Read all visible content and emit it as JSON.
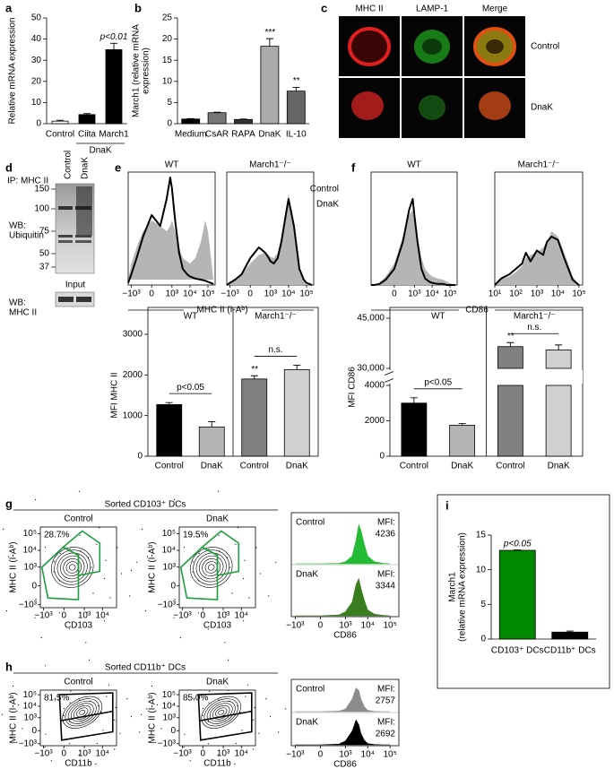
{
  "panel_labels": [
    "a",
    "b",
    "c",
    "d",
    "e",
    "f",
    "g",
    "h",
    "i"
  ],
  "microscopy": {
    "columns": [
      "MHC II",
      "LAMP-1",
      "Merge"
    ],
    "rows": [
      "Control",
      "DnaK"
    ]
  },
  "western_blot": {
    "ip_label": "IP: MHC II",
    "lanes": [
      "Control",
      "DnaK"
    ],
    "wb_label": [
      "WB:",
      "Ubiquitin"
    ],
    "markers": [
      150,
      100,
      75,
      50,
      37
    ],
    "input_label": "Input",
    "input_wb_label": [
      "WB:",
      "MHC II"
    ]
  },
  "chart_data": [
    {
      "type": "bar",
      "categories": [
        "Control",
        "Ciita",
        "March1"
      ],
      "values": [
        1.2,
        4.3,
        35
      ],
      "errors": [
        0.4,
        0.5,
        3
      ],
      "colors": [
        "#ffffff",
        "#000000",
        "#000000"
      ],
      "ylim": [
        0,
        50
      ],
      "yticks": [
        0,
        10,
        20,
        30,
        40,
        50
      ],
      "ylabel": [
        "Relative mRNA expression"
      ],
      "groups": [
        {
          "label": "DnaK",
          "from": 1,
          "to": 2
        }
      ],
      "group_position": "bottom",
      "annotations": [
        {
          "text": "p<0.01",
          "index": 2
        }
      ]
    },
    {
      "type": "bar",
      "categories": [
        "Medium",
        "CsAR",
        "RAPA",
        "DnaK",
        "IL-10"
      ],
      "values": [
        1.1,
        2.6,
        1.0,
        18.3,
        7.7
      ],
      "errors": [
        0.1,
        0.1,
        0.1,
        1.8,
        0.9
      ],
      "colors": [
        "#000000",
        "#777777",
        "#333333",
        "#aaaaaa",
        "#666666"
      ],
      "ylim": [
        0,
        25
      ],
      "yticks": [
        0,
        5,
        10,
        15,
        20,
        25
      ],
      "ylabel": [
        "March1 (relative mRNA",
        "expression)"
      ],
      "annotations": [
        {
          "text": "***",
          "index": 3
        },
        {
          "text": "**",
          "index": 4
        }
      ]
    },
    {
      "type": "density",
      "title": "WT",
      "xlabel": "MHC II (I-Aᵇ)",
      "xscale": "asinh",
      "x": [
        -1500,
        -1000,
        -500,
        -200,
        0,
        200,
        500,
        800,
        1000,
        1500,
        2500,
        4000,
        7000,
        10000,
        20000,
        40000,
        70000,
        100000,
        200000
      ],
      "xlim": [
        -1500,
        250000
      ],
      "ylim": [
        0,
        100
      ],
      "xticks": [
        {
          "value": -1000,
          "label": "−10³"
        },
        0,
        {
          "value": 1000,
          "label": "10³"
        },
        {
          "value": 10000,
          "label": "10⁴"
        },
        {
          "value": 100000,
          "label": "10⁵"
        }
      ],
      "series": [
        {
          "color": "#b5b5b5",
          "style": "filled",
          "values": [
            5,
            20,
            35,
            50,
            60,
            55,
            50,
            55,
            60,
            50,
            35,
            25,
            22,
            20,
            25,
            40,
            60,
            50,
            5
          ]
        },
        {
          "color": "#000000",
          "style": "line",
          "values": [
            2,
            10,
            25,
            45,
            65,
            55,
            80,
            100,
            90,
            60,
            30,
            15,
            10,
            8,
            6,
            5,
            4,
            3,
            1
          ]
        }
      ]
    },
    {
      "type": "density",
      "title": "March1⁻/⁻",
      "legend": "right",
      "xscale": "asinh",
      "x": [
        -1500,
        -1000,
        -500,
        -200,
        0,
        200,
        500,
        800,
        1000,
        1500,
        2500,
        4000,
        7000,
        10000,
        20000,
        40000,
        70000,
        100000,
        200000
      ],
      "xlim": [
        -1500,
        250000
      ],
      "ylim": [
        0,
        100
      ],
      "xticks": [
        {
          "value": -1000,
          "label": "−10³"
        },
        0,
        {
          "value": 1000,
          "label": "10³"
        },
        {
          "value": 10000,
          "label": "10⁴"
        },
        {
          "value": 100000,
          "label": "10⁵"
        }
      ],
      "series": [
        {
          "name": "Control",
          "color": "#b5b5b5",
          "style": "filled",
          "values": [
            0,
            2,
            5,
            10,
            20,
            28,
            30,
            28,
            26,
            25,
            30,
            45,
            70,
            85,
            50,
            15,
            5,
            2,
            0
          ]
        },
        {
          "name": "DnaK",
          "color": "#000000",
          "style": "line",
          "values": [
            0,
            2,
            5,
            10,
            25,
            35,
            30,
            25,
            22,
            20,
            25,
            40,
            65,
            80,
            55,
            15,
            5,
            2,
            0
          ]
        }
      ]
    },
    {
      "type": "density",
      "title": "WT",
      "xlabel": "CD86",
      "xscale": "asinh",
      "x": [
        -1500,
        -1000,
        -500,
        -200,
        0,
        200,
        500,
        800,
        1000,
        1500,
        2500,
        4000,
        7000,
        10000,
        20000,
        40000,
        70000,
        100000,
        200000
      ],
      "xlim": [
        -1500,
        250000
      ],
      "ylim": [
        0,
        100
      ],
      "xticks": [
        0,
        {
          "value": 1000,
          "label": "10³"
        },
        {
          "value": 10000,
          "label": "10⁴"
        },
        {
          "value": 100000,
          "label": "10⁵"
        }
      ],
      "series": [
        {
          "color": "#b5b5b5",
          "style": "filled",
          "values": [
            0,
            0,
            2,
            8,
            20,
            45,
            65,
            70,
            60,
            45,
            25,
            15,
            10,
            8,
            6,
            5,
            3,
            2,
            0
          ]
        },
        {
          "color": "#000000",
          "style": "line",
          "values": [
            0,
            0,
            1,
            5,
            15,
            40,
            70,
            80,
            65,
            40,
            15,
            6,
            3,
            2,
            1,
            1,
            0,
            0,
            0
          ]
        }
      ]
    },
    {
      "type": "density",
      "title": "March1⁻/⁻",
      "xscale": "log",
      "x": [
        10,
        20,
        50,
        100,
        200,
        300,
        500,
        1000,
        2000,
        3000,
        5000,
        10000,
        20000,
        50000,
        100000
      ],
      "xlim": [
        10,
        150000
      ],
      "ylim": [
        0,
        100
      ],
      "xticks": [
        {
          "value": 10,
          "label": "10¹"
        },
        {
          "value": 100,
          "label": "10²"
        },
        {
          "value": 1000,
          "label": "10³"
        },
        {
          "value": 10000,
          "label": "10⁴"
        },
        {
          "value": 100000,
          "label": "10⁵"
        }
      ],
      "series": [
        {
          "color": "#b5b5b5",
          "style": "filled",
          "values": [
            0,
            5,
            8,
            12,
            18,
            25,
            28,
            30,
            35,
            40,
            50,
            45,
            30,
            8,
            0
          ]
        },
        {
          "color": "#000000",
          "style": "line",
          "values": [
            0,
            6,
            10,
            15,
            20,
            30,
            22,
            32,
            28,
            40,
            45,
            42,
            25,
            5,
            0
          ]
        }
      ]
    },
    {
      "type": "bar",
      "frame": true,
      "categories": [
        "Control",
        "DnaK",
        "Control",
        "DnaK"
      ],
      "values": [
        1270,
        720,
        1900,
        2130
      ],
      "errors": [
        50,
        130,
        80,
        110
      ],
      "colors": [
        "#000000",
        "#b5b5b5",
        "#808080",
        "#d0d0d0"
      ],
      "ylim": [
        0,
        3000
      ],
      "yticks": [
        0,
        1000,
        2000,
        3000
      ],
      "ylabel": [
        "MFI MHC II"
      ],
      "groups": [
        {
          "label": "WT",
          "from": 0,
          "to": 1
        },
        {
          "label": "March1⁻/⁻",
          "from": 2,
          "to": 3
        }
      ],
      "group_position": "top",
      "annotations": [
        {
          "text": "p<0.05",
          "from": 0,
          "to": 1
        },
        {
          "text": "**",
          "index": 2
        },
        {
          "text": "n.s.",
          "from": 2,
          "to": 3
        }
      ]
    },
    {
      "type": "bar",
      "frame": true,
      "categories": [
        "Control",
        "DnaK",
        "Control",
        "DnaK"
      ],
      "values": [
        3000,
        1750,
        36500,
        35500
      ],
      "errors": [
        300,
        100,
        1200,
        1500
      ],
      "colors": [
        "#000000",
        "#b5b5b5",
        "#808080",
        "#d0d0d0"
      ],
      "ylim": [
        0,
        45000
      ],
      "ybreak": [
        4000,
        30000
      ],
      "yticks": [
        0,
        2000,
        4000,
        {
          "value": 30000,
          "label": "30,000"
        },
        {
          "value": 45000,
          "label": "45,000"
        }
      ],
      "ylabel": [
        "MFI CD86"
      ],
      "groups": [
        {
          "label": "WT",
          "from": 0,
          "to": 1
        },
        {
          "label": "March1⁻/⁻",
          "from": 2,
          "to": 3
        }
      ],
      "group_position": "top",
      "annotations": [
        {
          "text": "p<0.05",
          "from": 0,
          "to": 1
        },
        {
          "text": "**",
          "index": 2
        },
        {
          "text": "n.s.",
          "from": 2,
          "to": 3
        }
      ]
    },
    {
      "type": "contour",
      "header": "Sorted CD103⁺ DCs",
      "title": "Control",
      "gate_label": "28.7%",
      "color": "#1e9e3e",
      "xlabel": "CD103",
      "ylabel": "MHC II (I-Aᵇ)",
      "xlim": [
        -1500,
        60000
      ],
      "ylim": [
        -1500,
        250000
      ],
      "xticks": [
        {
          "value": -1000,
          "label": "−10³"
        },
        0,
        {
          "value": 1000,
          "label": "10³"
        },
        {
          "value": 10000,
          "label": "10⁴"
        }
      ],
      "yticks": [
        {
          "value": -1000,
          "label": "−10³"
        },
        0,
        {
          "value": 1000,
          "label": "10³"
        },
        {
          "value": 10000,
          "label": "10⁴"
        },
        {
          "value": 100000,
          "label": "10⁵"
        }
      ]
    },
    {
      "type": "contour",
      "title": "DnaK",
      "gate_label": "19.5%",
      "color": "#1e9e3e",
      "xlabel": "CD103",
      "ylabel": "MHC II (I-Aᵇ)",
      "xlim": [
        -1500,
        60000
      ],
      "ylim": [
        -1500,
        250000
      ],
      "xticks": [
        {
          "value": -1000,
          "label": "−10³"
        },
        0,
        {
          "value": 1000,
          "label": "10³"
        },
        {
          "value": 10000,
          "label": "10⁴"
        }
      ],
      "yticks": [
        {
          "value": -1000,
          "label": "−10³"
        },
        0,
        {
          "value": 1000,
          "label": "10³"
        },
        {
          "value": 10000,
          "label": "10⁴"
        },
        {
          "value": 100000,
          "label": "10⁵"
        }
      ]
    },
    {
      "type": "ridge",
      "xlabel": "CD86",
      "mfi_label": "MFI:",
      "xscale": "asinh",
      "x": [
        -1000,
        0,
        500,
        1000,
        2000,
        3000,
        4000,
        5000,
        7000,
        10000,
        20000,
        50000,
        100000
      ],
      "xlim": [
        -1500,
        250000
      ],
      "ylim": [
        0,
        100
      ],
      "xticks": [
        {
          "value": -1000,
          "label": "−10³"
        },
        0,
        {
          "value": 1000,
          "label": "10³"
        },
        {
          "value": 10000,
          "label": "10⁴"
        },
        {
          "value": 100000,
          "label": "10⁵"
        }
      ],
      "series": [
        {
          "name": "Control",
          "color": "#22bb33",
          "mfi": 4236,
          "values": [
            0,
            0,
            1,
            5,
            20,
            60,
            100,
            85,
            50,
            20,
            5,
            1,
            0
          ]
        },
        {
          "name": "DnaK",
          "color": "#3a7d1f",
          "mfi": 3344,
          "values": [
            0,
            0,
            2,
            10,
            35,
            80,
            95,
            70,
            40,
            15,
            4,
            1,
            0
          ]
        }
      ]
    },
    {
      "type": "contour",
      "header": "Sorted CD11b⁺ DCs",
      "title": "Control",
      "gate_label": "81.5%",
      "color": "#000000",
      "xlabel": "CD11b",
      "ylabel": "MHC II (I-Aᵇ)",
      "xlim": [
        -1500,
        60000
      ],
      "ylim": [
        -1500,
        250000
      ],
      "xticks": [
        {
          "value": -1000,
          "label": "−10³"
        },
        0,
        {
          "value": 1000,
          "label": "10³"
        },
        {
          "value": 10000,
          "label": "10⁴"
        }
      ],
      "yticks": [
        {
          "value": -1000,
          "label": "−10³"
        },
        0,
        {
          "value": 1000,
          "label": "10³"
        },
        {
          "value": 10000,
          "label": "10⁴"
        },
        {
          "value": 100000,
          "label": "10⁵"
        }
      ]
    },
    {
      "type": "contour",
      "title": "DnaK",
      "gate_label": "85.0%",
      "color": "#000000",
      "xlabel": "CD11b",
      "ylabel": "MHC II (I-Aᵇ)",
      "xlim": [
        -1500,
        60000
      ],
      "ylim": [
        -1500,
        250000
      ],
      "xticks": [
        {
          "value": -1000,
          "label": "−10³"
        },
        0,
        {
          "value": 1000,
          "label": "10³"
        },
        {
          "value": 10000,
          "label": "10⁴"
        }
      ],
      "yticks": [
        {
          "value": -1000,
          "label": "−10³"
        },
        0,
        {
          "value": 1000,
          "label": "10³"
        },
        {
          "value": 10000,
          "label": "10⁴"
        },
        {
          "value": 100000,
          "label": "10⁵"
        }
      ]
    },
    {
      "type": "ridge",
      "xlabel": "CD86",
      "mfi_label": "MFI:",
      "xscale": "asinh",
      "x": [
        -1000,
        0,
        500,
        1000,
        2000,
        3000,
        4000,
        5000,
        7000,
        10000,
        20000,
        50000,
        100000
      ],
      "xlim": [
        -1500,
        250000
      ],
      "ylim": [
        0,
        100
      ],
      "xticks": [
        {
          "value": -1000,
          "label": "−10³"
        },
        0,
        {
          "value": 1000,
          "label": "10³"
        },
        {
          "value": 10000,
          "label": "10⁴"
        },
        {
          "value": 100000,
          "label": "10⁵"
        }
      ],
      "series": [
        {
          "name": "Control",
          "color": "#8c8c8c",
          "mfi": 2757,
          "values": [
            0,
            0,
            2,
            10,
            50,
            95,
            85,
            50,
            20,
            5,
            1,
            0,
            0
          ]
        },
        {
          "name": "DnaK",
          "color": "#000000",
          "mfi": 2692,
          "values": [
            0,
            0,
            3,
            15,
            55,
            100,
            80,
            45,
            18,
            5,
            1,
            0,
            0
          ]
        }
      ]
    },
    {
      "type": "bar",
      "categories": [
        "CD103⁺ DCs",
        "CD11b⁺ DCs"
      ],
      "values": [
        12.8,
        1.0
      ],
      "errors": [
        0.05,
        0.15
      ],
      "colors": [
        "#008800",
        "#000000"
      ],
      "ylim": [
        0,
        15
      ],
      "yticks": [
        0,
        5,
        10,
        15
      ],
      "ylabel": [
        "March1",
        "(relative mRNA expression)"
      ],
      "annotations": [
        {
          "text": "p<0.05",
          "index": 0
        }
      ]
    }
  ]
}
